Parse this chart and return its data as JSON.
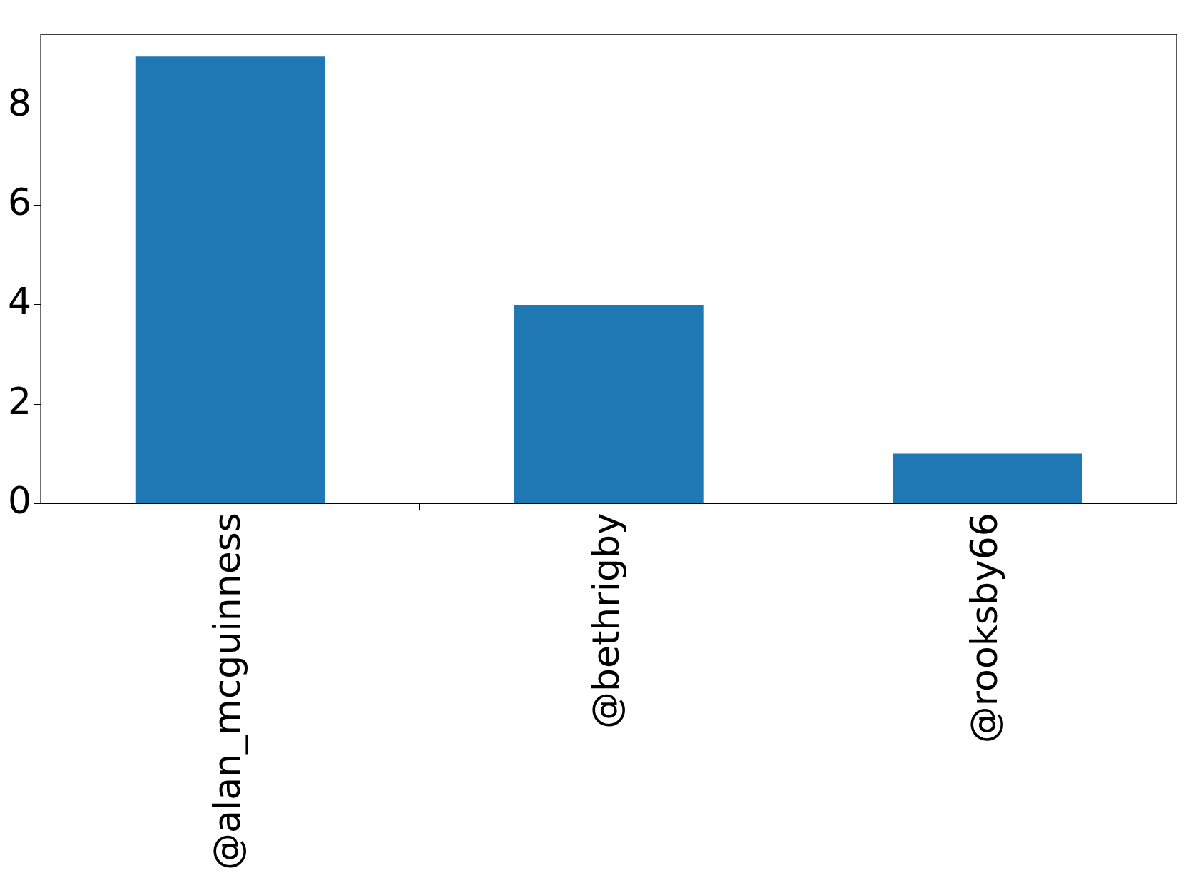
{
  "chart_data": {
    "type": "bar",
    "categories": [
      "@alan_mcguinness",
      "@bethrigby",
      "@rooksby66"
    ],
    "values": [
      9,
      4,
      1
    ],
    "color": "#1f77b4",
    "ylim": [
      0,
      9.45
    ],
    "yticks": [
      0,
      2,
      4,
      6,
      8
    ],
    "grid": false,
    "legend": false
  }
}
